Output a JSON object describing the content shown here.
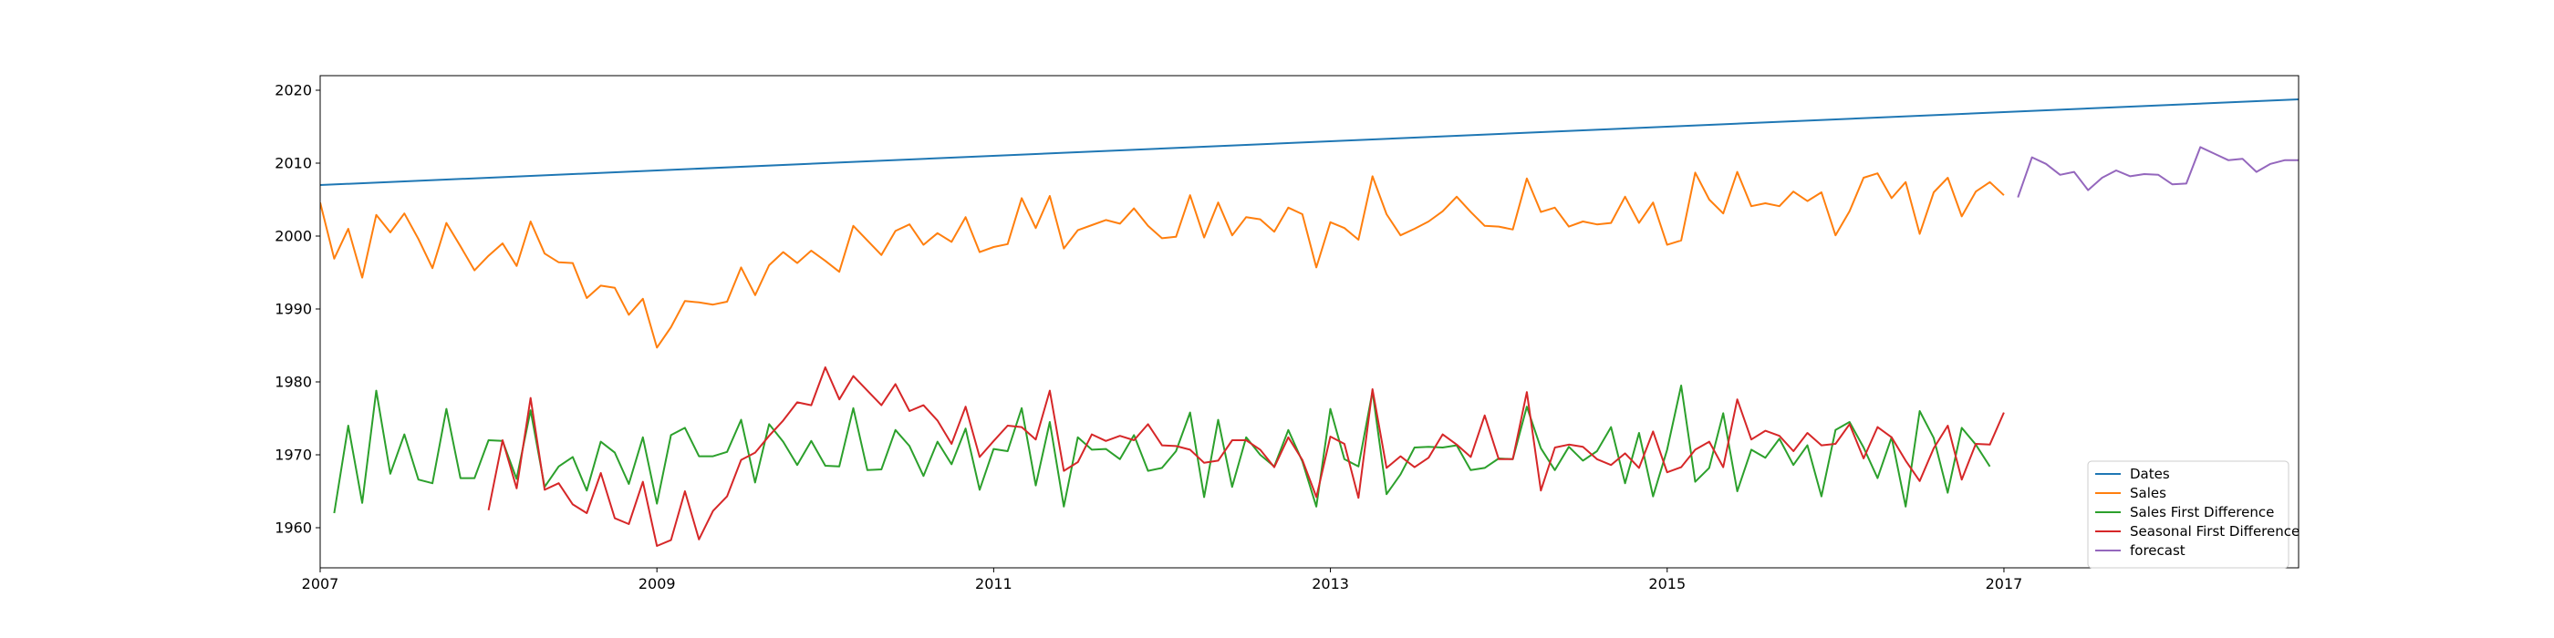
{
  "chart_data": {
    "type": "line",
    "title": "",
    "xlabel": "",
    "ylabel": "",
    "xlim": [
      2007.0,
      2018.75
    ],
    "ylim": [
      1954.5,
      2022
    ],
    "x_ticks": [
      {
        "value": 2007,
        "label": "2007"
      },
      {
        "value": 2009,
        "label": "2009"
      },
      {
        "value": 2011,
        "label": "2011"
      },
      {
        "value": 2013,
        "label": "2013"
      },
      {
        "value": 2015,
        "label": "2015"
      },
      {
        "value": 2017,
        "label": "2017"
      }
    ],
    "y_ticks": [
      {
        "value": 1960,
        "label": "1960"
      },
      {
        "value": 1970,
        "label": "1970"
      },
      {
        "value": 1980,
        "label": "1980"
      },
      {
        "value": 1990,
        "label": "1990"
      },
      {
        "value": 2000,
        "label": "2000"
      },
      {
        "value": 2010,
        "label": "2010"
      },
      {
        "value": 2020,
        "label": "2020"
      }
    ],
    "legend_position": "lower right",
    "series": [
      {
        "name": "Dates",
        "color": "#1f77b4",
        "x_start": 2007.0,
        "x_step": 0.08333,
        "y": [
          2007.0,
          2018.75
        ],
        "points": [
          [
            2007.0,
            2007.0
          ],
          [
            2018.75,
            2018.75
          ]
        ]
      },
      {
        "name": "Sales",
        "color": "#ff7f0e",
        "x_start": 2007.0,
        "x_step": 0.08333,
        "y": [
          2004.6,
          1996.9,
          2001.0,
          1994.3,
          2002.9,
          2000.5,
          2003.1,
          1999.6,
          1995.6,
          2001.8,
          1998.6,
          1995.3,
          1997.3,
          1999.0,
          1995.9,
          2002.0,
          1997.6,
          1996.4,
          1996.3,
          1991.5,
          1993.2,
          1992.9,
          1989.2,
          1991.4,
          1984.7,
          1987.5,
          1991.1,
          1990.9,
          1990.6,
          1991.0,
          1995.7,
          1991.9,
          1996.0,
          1997.8,
          1996.3,
          1998.0,
          1996.6,
          1995.1,
          2001.4,
          1999.4,
          1997.4,
          2000.7,
          2001.6,
          1998.8,
          2000.4,
          1999.2,
          2002.6,
          1997.8,
          1998.5,
          1998.9,
          2005.2,
          2001.1,
          2005.5,
          1998.3,
          2000.8,
          2001.5,
          2002.2,
          2001.7,
          2003.8,
          2001.4,
          1999.7,
          1999.9,
          2005.6,
          1999.8,
          2004.6,
          2000.1,
          2002.6,
          2002.3,
          2000.6,
          2003.9,
          2003.0,
          1995.7,
          2001.9,
          2001.1,
          1999.5,
          2008.2,
          2003.0,
          2000.1,
          2001.0,
          2002.0,
          2003.4,
          2005.4,
          2003.3,
          2001.4,
          2001.3,
          2000.9,
          2007.9,
          2003.3,
          2003.9,
          2001.3,
          2002.0,
          2001.6,
          2001.8,
          2005.4,
          2001.8,
          2004.6,
          1998.8,
          1999.4,
          2008.7,
          2005.0,
          2003.1,
          2008.8,
          2004.1,
          2004.5,
          2004.1,
          2006.1,
          2004.8,
          2006.0,
          2000.1,
          2003.4,
          2008.0,
          2008.6,
          2005.2,
          2007.4,
          2000.3,
          2006.0,
          2008.0,
          2002.7,
          2006.1,
          2007.4,
          2005.6
        ]
      },
      {
        "name": "Sales First Difference",
        "color": "#2ca02c",
        "x_start": 2007.0833,
        "x_step": 0.08333,
        "y": [
          1962.0,
          1974.0,
          1963.4,
          1978.8,
          1967.4,
          1972.8,
          1966.6,
          1966.1,
          1976.3,
          1966.8,
          1966.8,
          1972.0,
          1971.9,
          1966.7,
          1976.1,
          1965.6,
          1968.4,
          1969.7,
          1965.1,
          1971.8,
          1970.3,
          1966.0,
          1972.4,
          1963.3,
          1972.7,
          1973.7,
          1969.8,
          1969.8,
          1970.4,
          1974.8,
          1966.2,
          1974.2,
          1971.8,
          1968.6,
          1971.9,
          1968.5,
          1968.4,
          1976.4,
          1967.9,
          1968.0,
          1973.4,
          1971.2,
          1967.1,
          1971.8,
          1968.7,
          1973.6,
          1965.2,
          1970.8,
          1970.5,
          1976.4,
          1965.8,
          1974.5,
          1962.9,
          1972.4,
          1970.7,
          1970.8,
          1969.4,
          1972.7,
          1967.8,
          1968.2,
          1970.5,
          1975.8,
          1964.2,
          1974.8,
          1965.6,
          1972.4,
          1970.0,
          1968.4,
          1973.4,
          1969.1,
          1962.9,
          1976.3,
          1969.4,
          1968.4,
          1978.7,
          1964.6,
          1967.3,
          1971.0,
          1971.1,
          1971.0,
          1971.3,
          1967.9,
          1968.2,
          1969.5,
          1969.4,
          1976.6,
          1970.9,
          1967.9,
          1971.1,
          1969.2,
          1970.5,
          1973.8,
          1966.1,
          1973.0,
          1964.3,
          1970.7,
          1979.5,
          1966.3,
          1968.2,
          1975.7,
          1965.0,
          1970.7,
          1969.6,
          1972.2,
          1968.6,
          1971.3,
          1964.3,
          1973.4,
          1974.5,
          1971.0,
          1966.8,
          1972.4,
          1962.9,
          1976.0,
          1972.3,
          1964.8,
          1973.7,
          1971.4,
          1968.4
        ]
      },
      {
        "name": "Seasonal First Difference",
        "color": "#d62728",
        "x_start": 2008.0,
        "x_step": 0.08333,
        "y": [
          1962.4,
          1972.0,
          1965.4,
          1977.8,
          1965.2,
          1966.1,
          1963.2,
          1962.0,
          1967.5,
          1961.3,
          1960.5,
          1966.3,
          1957.5,
          1958.3,
          1965.0,
          1958.4,
          1962.3,
          1964.3,
          1969.3,
          1970.3,
          1972.6,
          1974.7,
          1977.2,
          1976.8,
          1982.0,
          1977.6,
          1980.8,
          1978.8,
          1976.8,
          1979.7,
          1976.0,
          1976.8,
          1974.7,
          1971.5,
          1976.6,
          1969.7,
          1971.9,
          1974.0,
          1973.8,
          1972.1,
          1978.8,
          1967.8,
          1969.0,
          1972.8,
          1971.9,
          1972.6,
          1972.0,
          1974.2,
          1971.3,
          1971.2,
          1970.7,
          1968.9,
          1969.2,
          1972.0,
          1972.0,
          1970.7,
          1968.3,
          1972.4,
          1969.3,
          1964.2,
          1972.5,
          1971.5,
          1964.1,
          1979.0,
          1968.2,
          1969.8,
          1968.3,
          1969.6,
          1972.8,
          1971.4,
          1969.7,
          1975.4,
          1969.4,
          1969.4,
          1978.6,
          1965.1,
          1971.0,
          1971.4,
          1971.1,
          1969.4,
          1968.6,
          1970.2,
          1968.2,
          1973.2,
          1967.6,
          1968.3,
          1970.7,
          1971.8,
          1968.3,
          1977.6,
          1972.1,
          1973.3,
          1972.6,
          1970.5,
          1973.0,
          1971.3,
          1971.5,
          1974.2,
          1969.5,
          1973.8,
          1972.4,
          1969.2,
          1966.4,
          1970.9,
          1974.0,
          1966.6,
          1971.5,
          1971.4,
          1975.8
        ]
      },
      {
        "name": "forecast",
        "color": "#9467bd",
        "x_start": 2017.0833,
        "x_step": 0.08333,
        "y": [
          2005.3,
          2010.8,
          2009.9,
          2008.4,
          2008.8,
          2006.3,
          2008.0,
          2009.0,
          2008.2,
          2008.5,
          2008.4,
          2007.1,
          2007.2,
          2012.2,
          2011.3,
          2010.4,
          2010.6,
          2008.8,
          2009.9,
          2010.4,
          2010.4,
          2010.2,
          2009.7
        ]
      }
    ]
  }
}
